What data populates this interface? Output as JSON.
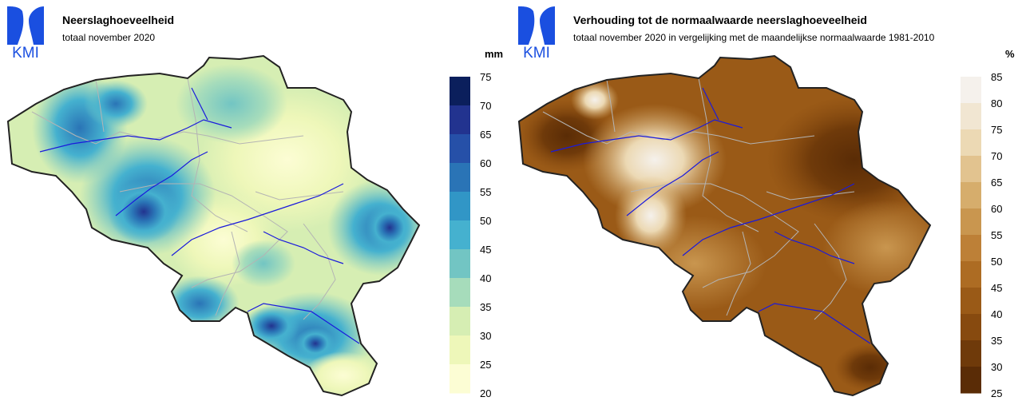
{
  "left_map": {
    "title": "Neerslaghoeveelheid",
    "subtitle": "totaal november 2020",
    "unit": "mm",
    "logo_text": "KMI",
    "legend": {
      "ticks": [
        75,
        70,
        65,
        60,
        55,
        50,
        45,
        40,
        35,
        30,
        25,
        20
      ],
      "colors": [
        "#0b1f5c",
        "#22338f",
        "#2650a8",
        "#2a74b6",
        "#3196c6",
        "#45b1cf",
        "#72c5c3",
        "#a6dcbb",
        "#d6eeb3",
        "#eef7b9",
        "#fcfdd4"
      ]
    }
  },
  "right_map": {
    "title": "Verhouding tot de normaalwaarde neerslaghoeveelheid",
    "subtitle": "totaal november 2020 in vergelijking met de maandelijkse normaalwaarde 1981-2010",
    "unit": "%",
    "logo_text": "KMI",
    "legend": {
      "ticks": [
        85,
        80,
        75,
        70,
        65,
        60,
        55,
        50,
        45,
        40,
        35,
        30,
        25
      ],
      "colors": [
        "#f5f1ec",
        "#f1e6d2",
        "#ecd9b4",
        "#e2c38f",
        "#d6ad6c",
        "#c9964f",
        "#bd8037",
        "#ad6c23",
        "#9a5a17",
        "#874a0f",
        "#6f3a0a",
        "#5a2c06"
      ]
    }
  },
  "colors": {
    "kmi_blue": "#1a4fe0",
    "border": "#222222",
    "rivers": "#1a1adc",
    "provinces": "#b4b4b4"
  }
}
